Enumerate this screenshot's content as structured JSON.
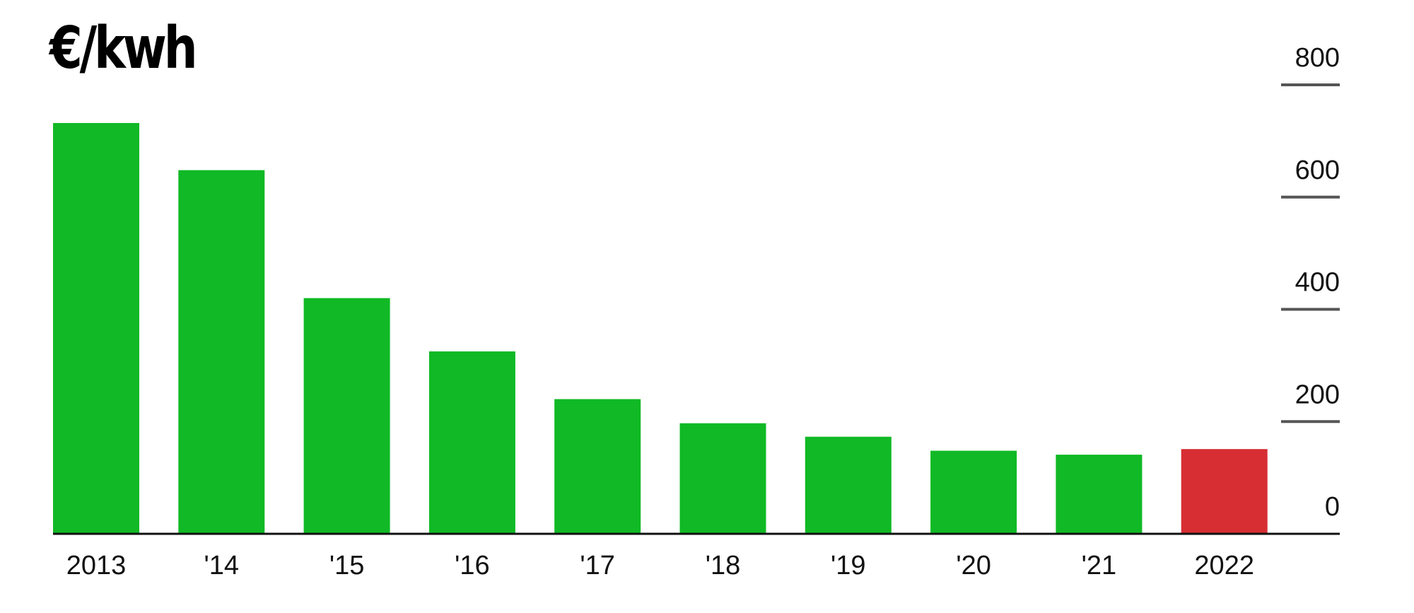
{
  "chart_data": {
    "type": "bar",
    "title": "€/kwh",
    "categories": [
      "2013",
      "'14",
      "'15",
      "'16",
      "'17",
      "'18",
      "'19",
      "'20",
      "'21",
      "2022"
    ],
    "values": [
      732,
      648,
      420,
      325,
      240,
      197,
      173,
      148,
      141,
      151
    ],
    "highlight_index": 9,
    "ylim": [
      0,
      800
    ],
    "yticks": [
      0,
      200,
      400,
      600,
      800
    ],
    "ytick_labels": [
      "0",
      "200",
      "400",
      "600",
      "800"
    ],
    "y_axis_position": "right",
    "grid": false,
    "colors": {
      "bar": "#10b925",
      "highlight": "#d62e33",
      "axis": "#111111",
      "tick": "#555555",
      "text": "#111111"
    }
  }
}
